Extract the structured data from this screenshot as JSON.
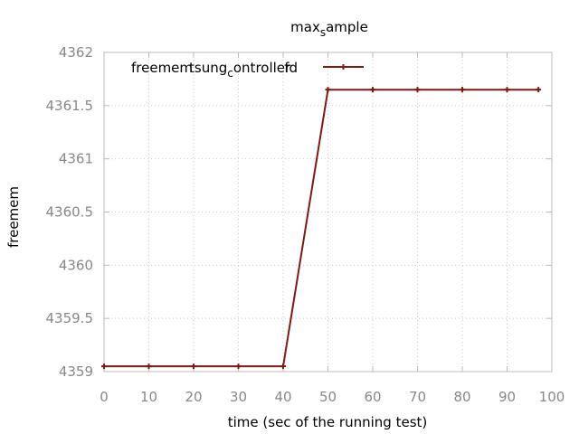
{
  "chart_data": {
    "type": "line",
    "title": {
      "base": "max",
      "sub": "s",
      "rest": "ample"
    },
    "xlabel": "time (sec of the running test)",
    "ylabel": "freemem",
    "xlim": [
      0,
      100
    ],
    "ylim": [
      4359,
      4362
    ],
    "xticks": [
      "0",
      "10",
      "20",
      "30",
      "40",
      "50",
      "60",
      "70",
      "80",
      "90",
      "100"
    ],
    "yticks": [
      "4359",
      "4359.5",
      "4360",
      "4360.5",
      "4361",
      "4361.5",
      "4362"
    ],
    "grid": true,
    "legend_position": "top-left",
    "series": [
      {
        "name": {
          "a": "freemem",
          "b": "tsung",
          "c": "c",
          "d": "ontroller",
          "e": "fd"
        },
        "color": "#7f1a10",
        "x": [
          0,
          10,
          20,
          30,
          40,
          50,
          60,
          70,
          80,
          90,
          97
        ],
        "y": [
          4359.05,
          4359.05,
          4359.05,
          4359.05,
          4359.05,
          4361.65,
          4361.65,
          4361.65,
          4361.65,
          4361.65,
          4361.65
        ]
      }
    ]
  }
}
